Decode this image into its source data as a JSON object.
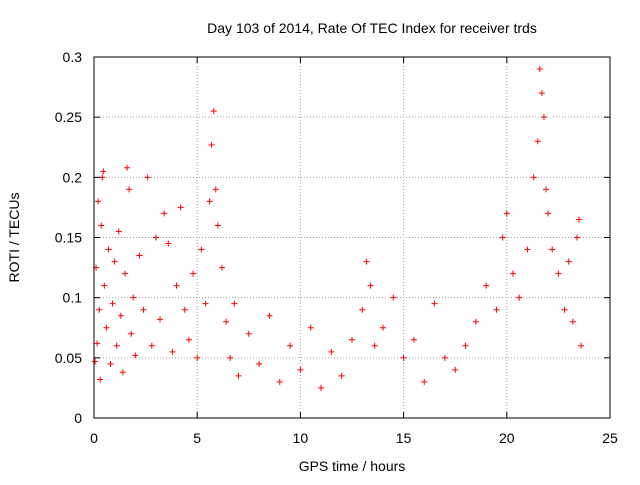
{
  "chart_data": {
    "type": "scatter",
    "title": "Day 103 of 2014, Rate Of TEC Index for receiver trds",
    "xlabel": "GPS time / hours",
    "ylabel": "ROTI / TECUs",
    "xlim": [
      0,
      25
    ],
    "ylim": [
      0,
      0.3
    ],
    "x_ticks": [
      0,
      5,
      10,
      15,
      20,
      25
    ],
    "x_tick_labels": [
      "0",
      "5",
      "10",
      "15",
      "20",
      "25"
    ],
    "y_ticks": [
      0,
      0.05,
      0.1,
      0.15,
      0.2,
      0.25,
      0.3
    ],
    "y_tick_labels": [
      "0",
      "0.05",
      "0.1",
      "0.15",
      "0.2",
      "0.25",
      "0.3"
    ],
    "grid": true,
    "marker": "+",
    "color": "#ff0000",
    "series": [
      {
        "name": "ROTI",
        "points": [
          [
            0.05,
            0.047
          ],
          [
            0.1,
            0.125
          ],
          [
            0.15,
            0.062
          ],
          [
            0.2,
            0.18
          ],
          [
            0.25,
            0.09
          ],
          [
            0.3,
            0.032
          ],
          [
            0.35,
            0.16
          ],
          [
            0.4,
            0.2
          ],
          [
            0.45,
            0.205
          ],
          [
            0.5,
            0.11
          ],
          [
            0.6,
            0.075
          ],
          [
            0.7,
            0.14
          ],
          [
            0.8,
            0.045
          ],
          [
            0.9,
            0.095
          ],
          [
            1.0,
            0.13
          ],
          [
            1.1,
            0.06
          ],
          [
            1.2,
            0.155
          ],
          [
            1.3,
            0.085
          ],
          [
            1.4,
            0.038
          ],
          [
            1.5,
            0.12
          ],
          [
            1.6,
            0.208
          ],
          [
            1.7,
            0.19
          ],
          [
            1.8,
            0.07
          ],
          [
            1.9,
            0.1
          ],
          [
            2.0,
            0.052
          ],
          [
            2.2,
            0.135
          ],
          [
            2.4,
            0.09
          ],
          [
            2.6,
            0.2
          ],
          [
            2.8,
            0.06
          ],
          [
            3.0,
            0.15
          ],
          [
            3.2,
            0.082
          ],
          [
            3.4,
            0.17
          ],
          [
            3.6,
            0.145
          ],
          [
            3.8,
            0.055
          ],
          [
            4.0,
            0.11
          ],
          [
            4.2,
            0.175
          ],
          [
            4.4,
            0.09
          ],
          [
            4.6,
            0.065
          ],
          [
            4.8,
            0.12
          ],
          [
            5.0,
            0.05
          ],
          [
            5.2,
            0.14
          ],
          [
            5.4,
            0.095
          ],
          [
            5.6,
            0.18
          ],
          [
            5.7,
            0.227
          ],
          [
            5.8,
            0.255
          ],
          [
            5.9,
            0.19
          ],
          [
            6.0,
            0.16
          ],
          [
            6.2,
            0.125
          ],
          [
            6.4,
            0.08
          ],
          [
            6.6,
            0.05
          ],
          [
            6.8,
            0.095
          ],
          [
            7.0,
            0.035
          ],
          [
            7.5,
            0.07
          ],
          [
            8.0,
            0.045
          ],
          [
            8.5,
            0.085
          ],
          [
            9.0,
            0.03
          ],
          [
            9.5,
            0.06
          ],
          [
            10.0,
            0.04
          ],
          [
            10.5,
            0.075
          ],
          [
            11.0,
            0.025
          ],
          [
            11.5,
            0.055
          ],
          [
            12.0,
            0.035
          ],
          [
            12.5,
            0.065
          ],
          [
            13.0,
            0.09
          ],
          [
            13.2,
            0.13
          ],
          [
            13.4,
            0.11
          ],
          [
            13.6,
            0.06
          ],
          [
            14.0,
            0.075
          ],
          [
            14.5,
            0.1
          ],
          [
            15.0,
            0.05
          ],
          [
            15.5,
            0.065
          ],
          [
            16.0,
            0.03
          ],
          [
            16.5,
            0.095
          ],
          [
            17.0,
            0.05
          ],
          [
            17.5,
            0.04
          ],
          [
            18.0,
            0.06
          ],
          [
            18.5,
            0.08
          ],
          [
            19.0,
            0.11
          ],
          [
            19.5,
            0.09
          ],
          [
            19.8,
            0.15
          ],
          [
            20.0,
            0.17
          ],
          [
            20.3,
            0.12
          ],
          [
            20.6,
            0.1
          ],
          [
            21.0,
            0.14
          ],
          [
            21.3,
            0.2
          ],
          [
            21.5,
            0.23
          ],
          [
            21.6,
            0.29
          ],
          [
            21.7,
            0.27
          ],
          [
            21.8,
            0.25
          ],
          [
            21.9,
            0.19
          ],
          [
            22.0,
            0.17
          ],
          [
            22.2,
            0.14
          ],
          [
            22.5,
            0.12
          ],
          [
            22.8,
            0.09
          ],
          [
            23.0,
            0.13
          ],
          [
            23.2,
            0.08
          ],
          [
            23.4,
            0.15
          ],
          [
            23.5,
            0.165
          ],
          [
            23.6,
            0.06
          ]
        ]
      }
    ]
  }
}
